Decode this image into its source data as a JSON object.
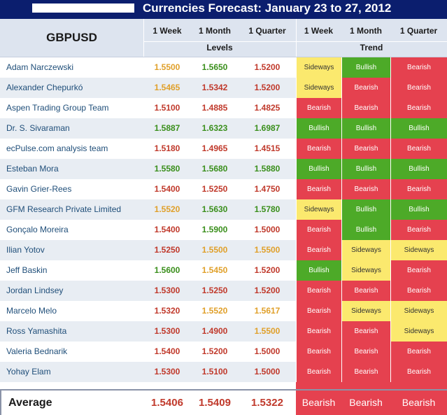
{
  "title": "Currencies Forecast: January 23 to 27, 2012",
  "pair": "GBPUSD",
  "headers": {
    "week": "1 Week",
    "month": "1 Month",
    "quarter": "1 Quarter",
    "levels": "Levels",
    "trend": "Trend"
  },
  "colors": {
    "bearish": "#e5414f",
    "bullish": "#4daa28",
    "sideways": "#fbe96e",
    "header_bg": "#0b1e6e"
  },
  "rows": [
    {
      "name": "Adam Narczewski",
      "levels": [
        "1.5500",
        "1.5650",
        "1.5200"
      ],
      "level_colors": [
        "orange",
        "green",
        "red"
      ],
      "trend": [
        "Sideways",
        "Bullish",
        "Bearish"
      ]
    },
    {
      "name": "Alexander Chepurkó",
      "levels": [
        "1.5465",
        "1.5342",
        "1.5200"
      ],
      "level_colors": [
        "orange",
        "red",
        "red"
      ],
      "trend": [
        "Sideways",
        "Bearish",
        "Bearish"
      ]
    },
    {
      "name": "Aspen Trading Group Team",
      "levels": [
        "1.5100",
        "1.4885",
        "1.4825"
      ],
      "level_colors": [
        "red",
        "red",
        "red"
      ],
      "trend": [
        "Bearish",
        "Bearish",
        "Bearish"
      ]
    },
    {
      "name": "Dr. S. Sivaraman",
      "levels": [
        "1.5887",
        "1.6323",
        "1.6987"
      ],
      "level_colors": [
        "green",
        "green",
        "green"
      ],
      "trend": [
        "Bullish",
        "Bullish",
        "Bullish"
      ]
    },
    {
      "name": "ecPulse.com analysis team",
      "levels": [
        "1.5180",
        "1.4965",
        "1.4515"
      ],
      "level_colors": [
        "red",
        "red",
        "red"
      ],
      "trend": [
        "Bearish",
        "Bearish",
        "Bearish"
      ]
    },
    {
      "name": "Esteban Mora",
      "levels": [
        "1.5580",
        "1.5680",
        "1.5880"
      ],
      "level_colors": [
        "green",
        "green",
        "green"
      ],
      "trend": [
        "Bullish",
        "Bullish",
        "Bullish"
      ]
    },
    {
      "name": "Gavin Grier-Rees",
      "levels": [
        "1.5400",
        "1.5250",
        "1.4750"
      ],
      "level_colors": [
        "red",
        "red",
        "red"
      ],
      "trend": [
        "Bearish",
        "Bearish",
        "Bearish"
      ]
    },
    {
      "name": "GFM Research Private Limited",
      "levels": [
        "1.5520",
        "1.5630",
        "1.5780"
      ],
      "level_colors": [
        "orange",
        "green",
        "green"
      ],
      "trend": [
        "Sideways",
        "Bullish",
        "Bullish"
      ]
    },
    {
      "name": "Gonçalo Moreira",
      "levels": [
        "1.5400",
        "1.5900",
        "1.5000"
      ],
      "level_colors": [
        "red",
        "green",
        "red"
      ],
      "trend": [
        "Bearish",
        "Bullish",
        "Bearish"
      ]
    },
    {
      "name": "Ilian Yotov",
      "levels": [
        "1.5250",
        "1.5500",
        "1.5500"
      ],
      "level_colors": [
        "red",
        "orange",
        "orange"
      ],
      "trend": [
        "Bearish",
        "Sideways",
        "Sideways"
      ]
    },
    {
      "name": "Jeff Baskin",
      "levels": [
        "1.5600",
        "1.5450",
        "1.5200"
      ],
      "level_colors": [
        "green",
        "orange",
        "red"
      ],
      "trend": [
        "Bullish",
        "Sideways",
        "Bearish"
      ]
    },
    {
      "name": "Jordan Lindsey",
      "levels": [
        "1.5300",
        "1.5250",
        "1.5200"
      ],
      "level_colors": [
        "red",
        "red",
        "red"
      ],
      "trend": [
        "Bearish",
        "Bearish",
        "Bearish"
      ]
    },
    {
      "name": "Marcelo Melo",
      "levels": [
        "1.5320",
        "1.5520",
        "1.5617"
      ],
      "level_colors": [
        "red",
        "orange",
        "orange"
      ],
      "trend": [
        "Bearish",
        "Sideways",
        "Sideways"
      ]
    },
    {
      "name": "Ross Yamashita",
      "levels": [
        "1.5300",
        "1.4900",
        "1.5500"
      ],
      "level_colors": [
        "red",
        "red",
        "orange"
      ],
      "trend": [
        "Bearish",
        "Bearish",
        "Sideways"
      ]
    },
    {
      "name": "Valeria Bednarik",
      "levels": [
        "1.5400",
        "1.5200",
        "1.5000"
      ],
      "level_colors": [
        "red",
        "red",
        "red"
      ],
      "trend": [
        "Bearish",
        "Bearish",
        "Bearish"
      ]
    },
    {
      "name": "Yohay Elam",
      "levels": [
        "1.5300",
        "1.5100",
        "1.5000"
      ],
      "level_colors": [
        "red",
        "red",
        "red"
      ],
      "trend": [
        "Bearish",
        "Bearish",
        "Bearish"
      ]
    }
  ],
  "average": {
    "label": "Average",
    "levels": [
      "1.5406",
      "1.5409",
      "1.5322"
    ],
    "trend": [
      "Bearish",
      "Bearish",
      "Bearish"
    ]
  }
}
